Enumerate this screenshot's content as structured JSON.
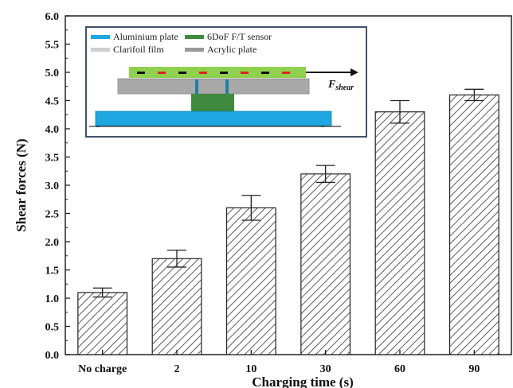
{
  "chart_data": {
    "type": "bar",
    "categories": [
      "No charge",
      "2",
      "10",
      "30",
      "60",
      "90"
    ],
    "values": [
      1.1,
      1.7,
      2.6,
      3.2,
      4.3,
      4.6
    ],
    "errors": [
      0.08,
      0.15,
      0.22,
      0.15,
      0.2,
      0.1
    ],
    "xlabel": "Charging time (s)",
    "ylabel": "Shear forces (N)",
    "ylim": [
      0,
      6
    ],
    "yticks": [
      "0.0",
      "0.5",
      "1.0",
      "1.5",
      "2.0",
      "2.5",
      "3.0",
      "3.5",
      "4.0",
      "4.5",
      "5.0",
      "5.5",
      "6.0"
    ],
    "bar_pattern": "diagonal-hatch",
    "inset": {
      "legend": [
        {
          "label": "Aluminium plate",
          "color": "#1ea7e1"
        },
        {
          "label": "6DoF F/T sensor",
          "color": "#3f8a3f"
        },
        {
          "label": "Clarifoil film",
          "color": "#cfcfcf"
        },
        {
          "label": "Acrylic plate",
          "color": "#9a9a9a"
        }
      ],
      "force_label": "F",
      "force_subscript": "shear"
    }
  }
}
